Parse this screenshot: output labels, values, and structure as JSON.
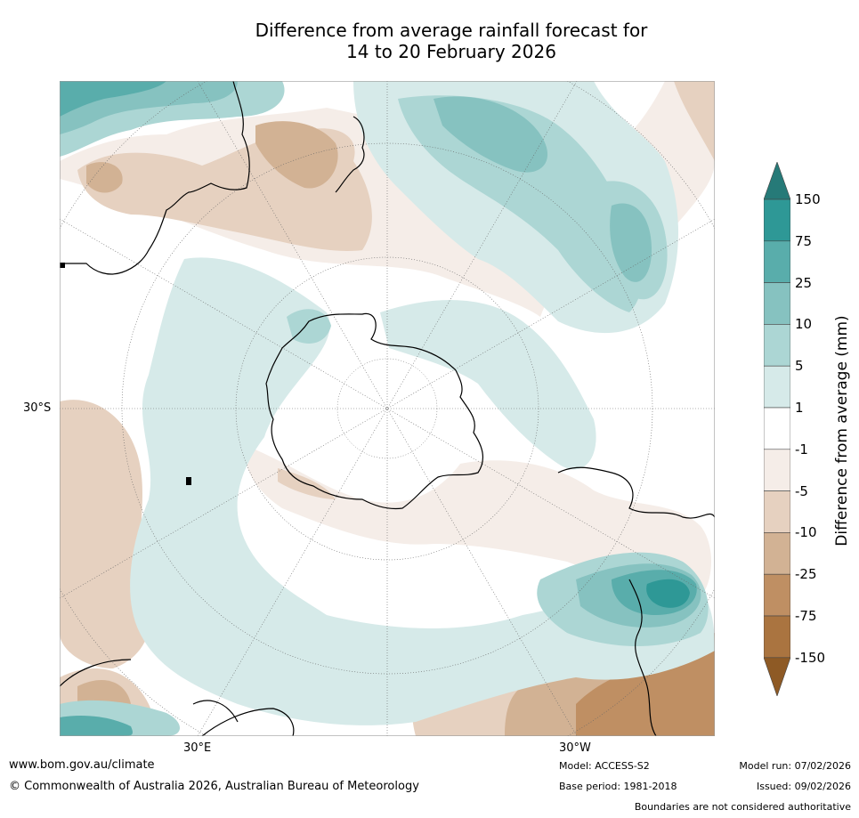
{
  "title": {
    "line1": "Difference from average rainfall forecast for",
    "line2": "14 to 20 February 2026"
  },
  "map": {
    "latitude_label": "30°S",
    "longitude_labels": {
      "east": "30°E",
      "west": "30°W"
    },
    "projection": "south-polar-stereographic",
    "features": [
      "Antarctica",
      "Australia",
      "New Zealand",
      "South America",
      "Africa",
      "Madagascar"
    ]
  },
  "colorbar": {
    "label": "Difference from average (mm)",
    "ticks": [
      "150",
      "75",
      "25",
      "10",
      "5",
      "1",
      "-1",
      "-5",
      "-10",
      "-25",
      "-75",
      "-150"
    ],
    "colors": {
      "above_150": "#267a78",
      "75_150": "#2e9896",
      "25_75": "#59adab",
      "10_25": "#86c2c0",
      "5_10": "#acd6d4",
      "1_5": "#d6eae9",
      "-1_1": "#ffffff",
      "-5_-1": "#f5ede8",
      "-10_-5": "#e6d1c0",
      "-25_-10": "#d2b294",
      "-75_-25": "#bf8f63",
      "-150_-75": "#aa7440",
      "below_-150": "#8e5a25"
    }
  },
  "footer": {
    "website": "www.bom.gov.au/climate",
    "copyright": "© Commonwealth of Australia 2026, Australian Bureau of Meteorology",
    "model": "Model: ACCESS-S2",
    "base_period": "Base period: 1981-2018",
    "model_run": "Model run: 07/02/2026",
    "issued": "Issued: 09/02/2026",
    "disclaimer": "Boundaries are not considered authoritative"
  }
}
